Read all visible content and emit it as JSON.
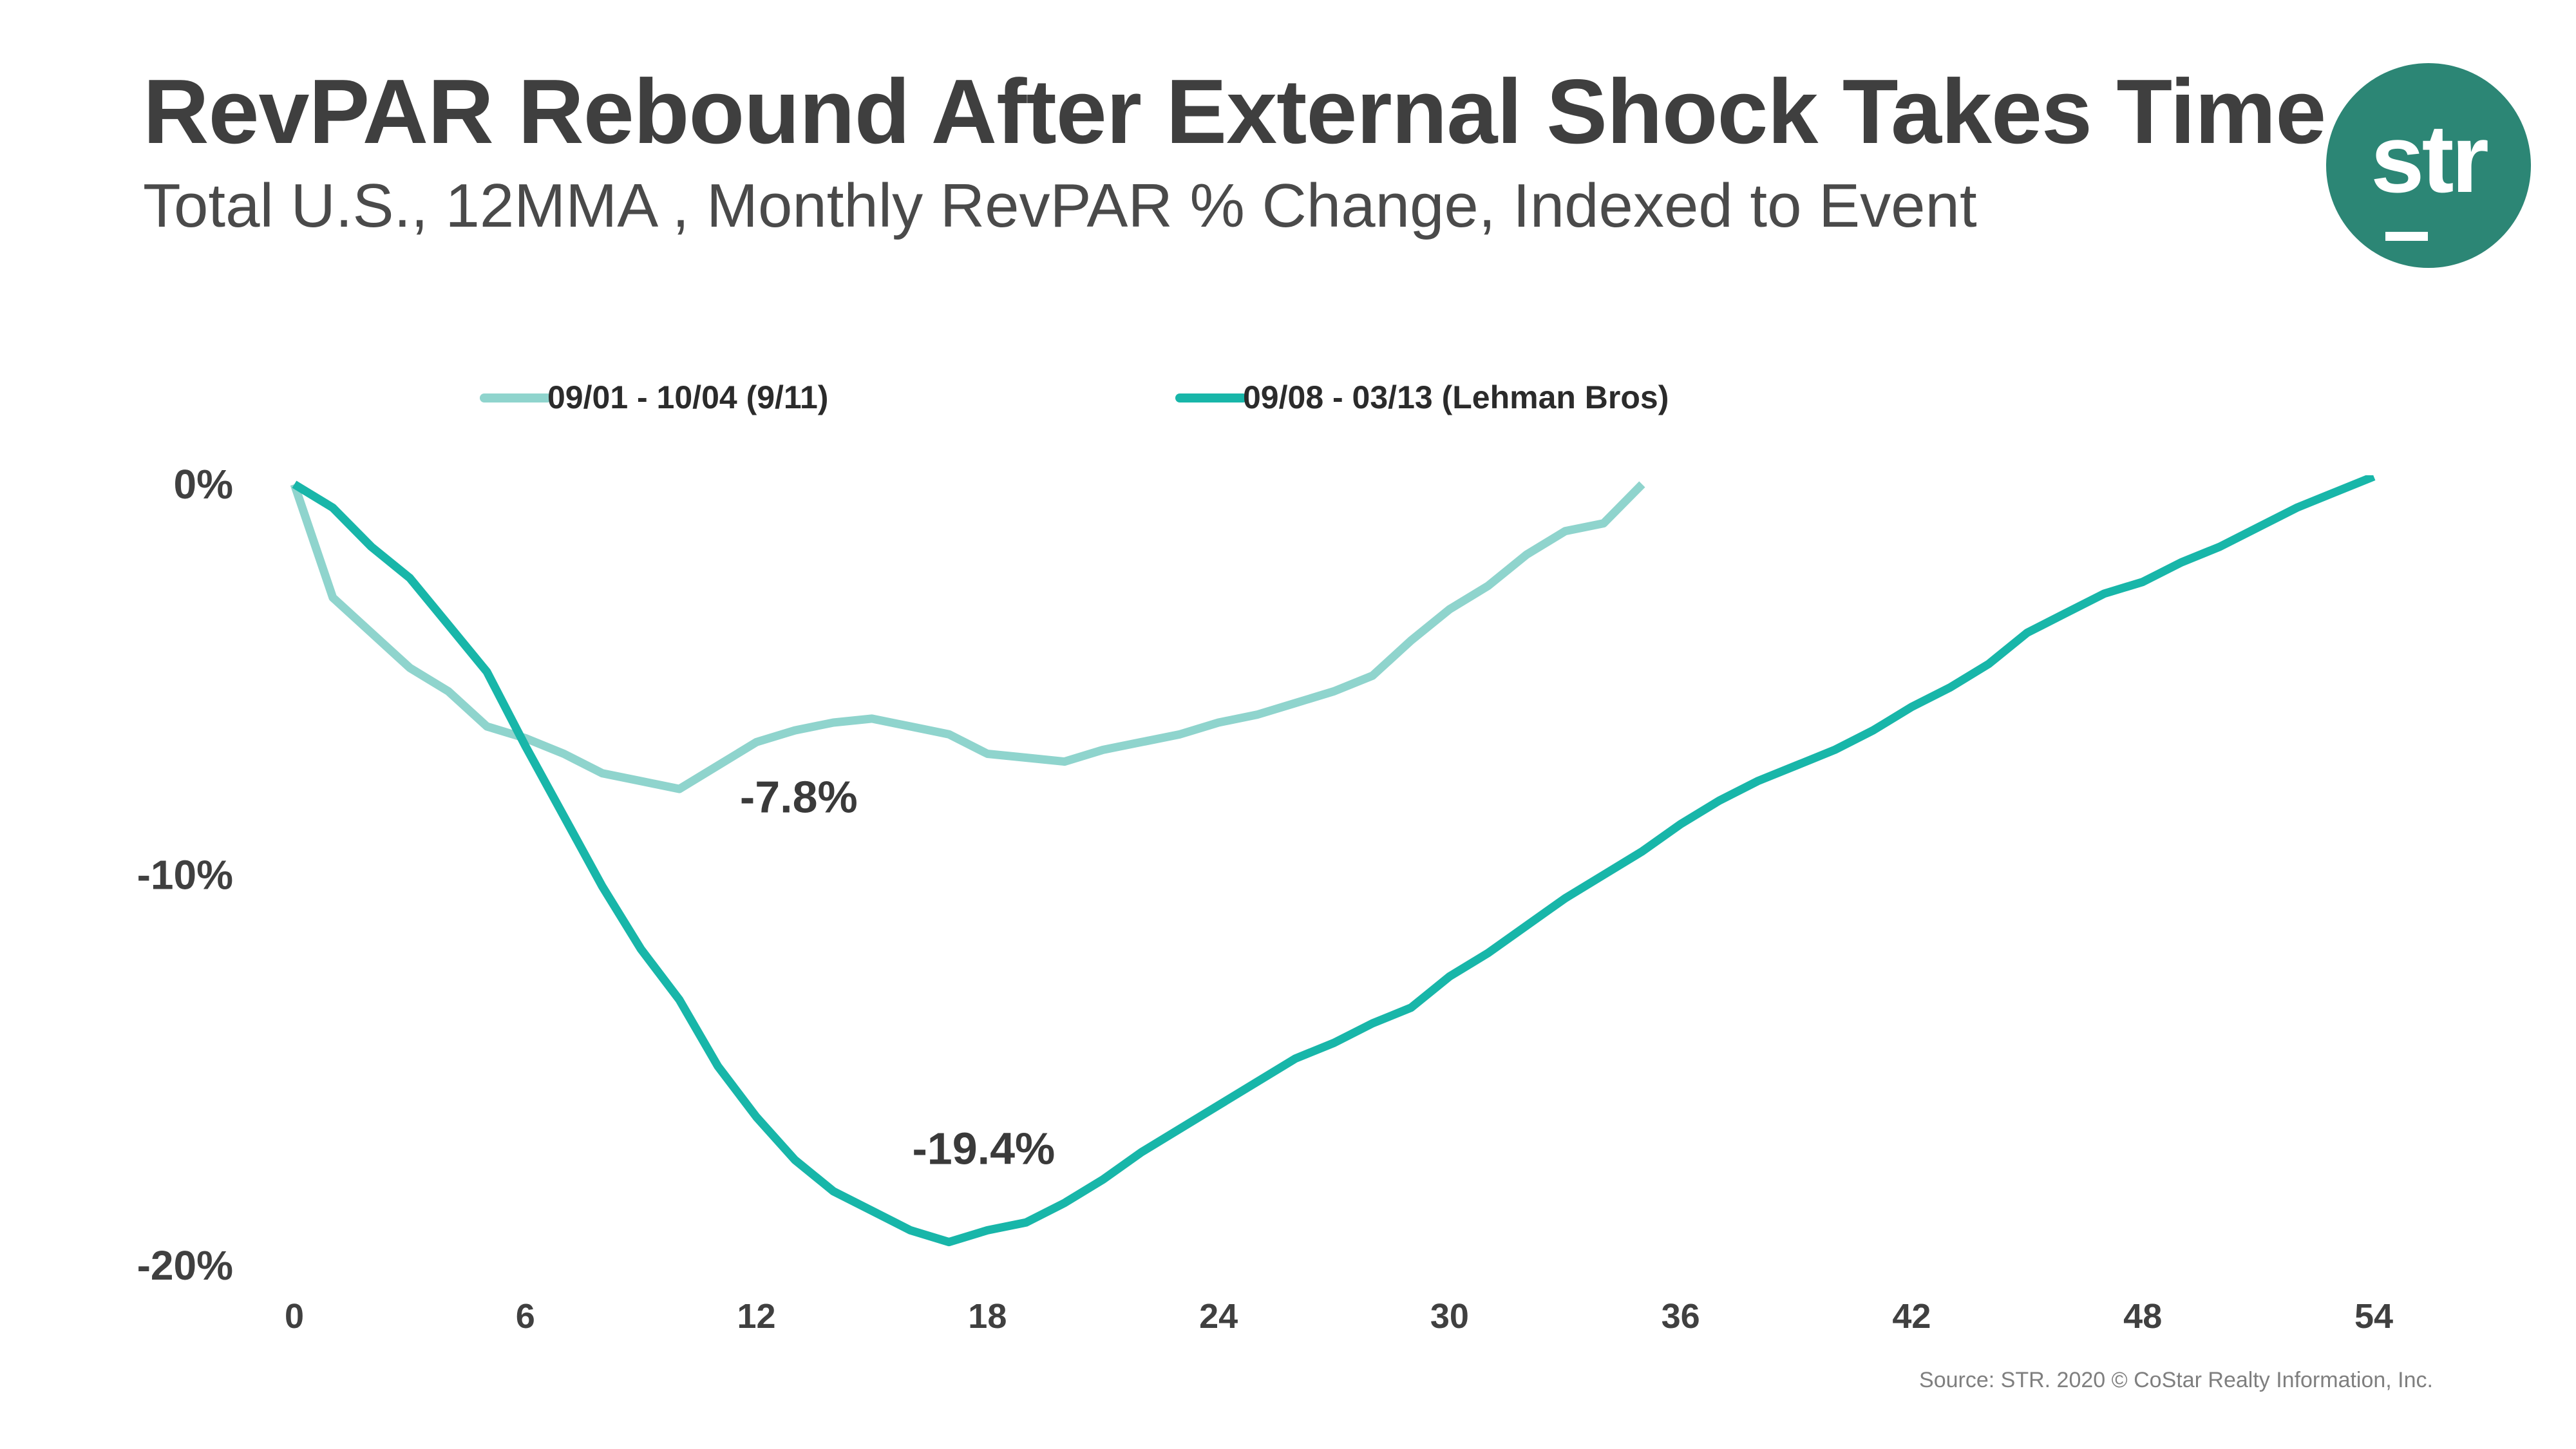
{
  "title": "RevPAR Rebound After External Shock Takes Time",
  "subtitle": "Total U.S., 12MMA , Monthly RevPAR % Change, Indexed to Event",
  "logo_text": "str",
  "source": "Source: STR. 2020 © CoStar Realty Information, Inc.",
  "colors": {
    "series_911": "#8fd4cd",
    "series_lehman": "#18b6a9",
    "axis_text": "#404040"
  },
  "chart_data": {
    "type": "line",
    "title": "RevPAR Rebound After External Shock Takes Time",
    "xlabel": "",
    "ylabel": "",
    "xlim": [
      0,
      54
    ],
    "ylim": [
      -20,
      0
    ],
    "x_ticks": [
      0,
      6,
      12,
      18,
      24,
      30,
      36,
      42,
      48,
      54
    ],
    "y_ticks": [
      0,
      -10,
      -20
    ],
    "y_tick_labels": [
      "0%",
      "-10%",
      "-20%"
    ],
    "grid": false,
    "legend": "top",
    "annotations": [
      {
        "text": "-7.8%",
        "x": 13.1,
        "y": -8.4
      },
      {
        "text": "-19.4%",
        "x": 17.9,
        "y": -17.4
      }
    ],
    "series": [
      {
        "name": "09/01 - 10/04 (9/11)",
        "x": [
          0,
          1,
          2,
          3,
          4,
          5,
          6,
          7,
          8,
          9,
          10,
          11,
          12,
          13,
          14,
          15,
          16,
          17,
          18,
          19,
          20,
          21,
          22,
          23,
          24,
          25,
          26,
          27,
          28,
          29,
          30,
          31,
          32,
          33,
          34,
          35
        ],
        "values": [
          0,
          -2.9,
          -3.8,
          -4.7,
          -5.3,
          -6.2,
          -6.5,
          -6.9,
          -7.4,
          -7.6,
          -7.8,
          -7.2,
          -6.6,
          -6.3,
          -6.1,
          -6.0,
          -6.2,
          -6.4,
          -6.9,
          -7.0,
          -7.1,
          -6.8,
          -6.6,
          -6.4,
          -6.1,
          -5.9,
          -5.6,
          -5.3,
          -4.9,
          -4.0,
          -3.2,
          -2.6,
          -1.8,
          -1.2,
          -1.0,
          0
        ]
      },
      {
        "name": "09/08 - 03/13 (Lehman Bros)",
        "x": [
          0,
          1,
          2,
          3,
          4,
          5,
          6,
          7,
          8,
          9,
          10,
          11,
          12,
          13,
          14,
          15,
          16,
          17,
          18,
          19,
          20,
          21,
          22,
          23,
          24,
          25,
          26,
          27,
          28,
          29,
          30,
          31,
          32,
          33,
          34,
          35,
          36,
          37,
          38,
          39,
          40,
          41,
          42,
          43,
          44,
          45,
          46,
          47,
          48,
          49,
          50,
          51,
          52,
          53,
          54
        ],
        "values": [
          0,
          -0.6,
          -1.6,
          -2.4,
          -3.6,
          -4.8,
          -6.7,
          -8.5,
          -10.3,
          -11.9,
          -13.2,
          -14.9,
          -16.2,
          -17.3,
          -18.1,
          -18.6,
          -19.1,
          -19.4,
          -19.1,
          -18.9,
          -18.4,
          -17.8,
          -17.1,
          -16.5,
          -15.9,
          -15.3,
          -14.7,
          -14.3,
          -13.8,
          -13.4,
          -12.6,
          -12.0,
          -11.3,
          -10.6,
          -10.0,
          -9.4,
          -8.7,
          -8.1,
          -7.6,
          -7.2,
          -6.8,
          -6.3,
          -5.7,
          -5.2,
          -4.6,
          -3.8,
          -3.3,
          -2.8,
          -2.5,
          -2.0,
          -1.6,
          -1.1,
          -0.6,
          -0.2,
          0.2
        ]
      }
    ]
  }
}
